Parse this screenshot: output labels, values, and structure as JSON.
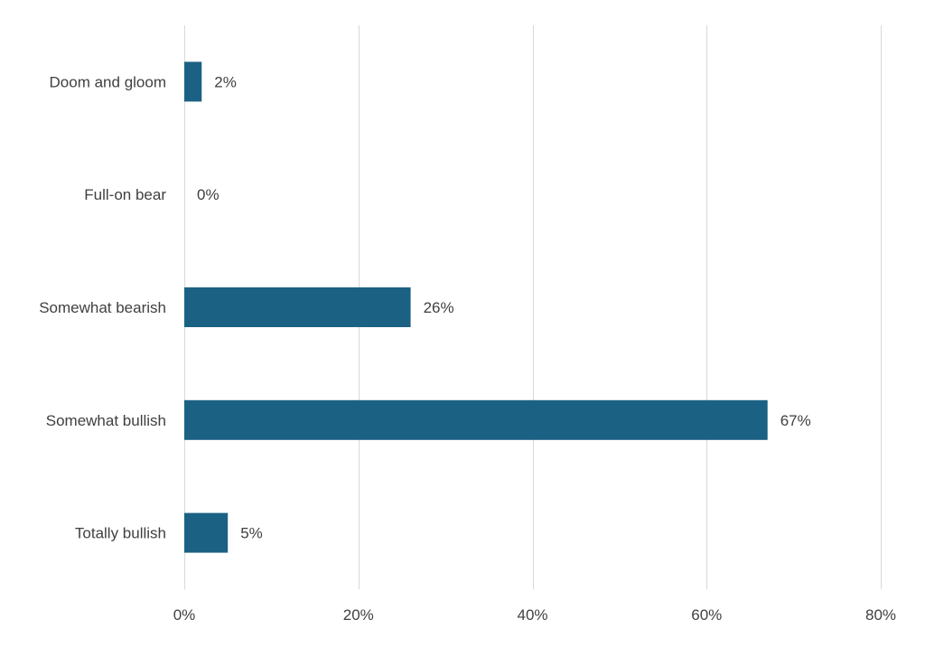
{
  "chart_data": {
    "type": "bar",
    "orientation": "horizontal",
    "title": "",
    "xlabel": "",
    "ylabel": "",
    "categories": [
      "Doom and gloom",
      "Full-on bear",
      "Somewhat bearish",
      "Somewhat bullish",
      "Totally bullish"
    ],
    "values": [
      2,
      0,
      26,
      67,
      5
    ],
    "data_labels": [
      "2%",
      "0%",
      "26%",
      "67%",
      "5%"
    ],
    "xlim": [
      0,
      80
    ],
    "x_ticks": [
      0,
      20,
      40,
      60,
      80
    ],
    "x_tick_labels": [
      "0%",
      "20%",
      "40%",
      "60%",
      "80%"
    ],
    "grid": "vertical",
    "legend": "none",
    "colors": {
      "bar": "#1b6184",
      "grid": "#d9d9d9",
      "text": "#404040"
    }
  }
}
